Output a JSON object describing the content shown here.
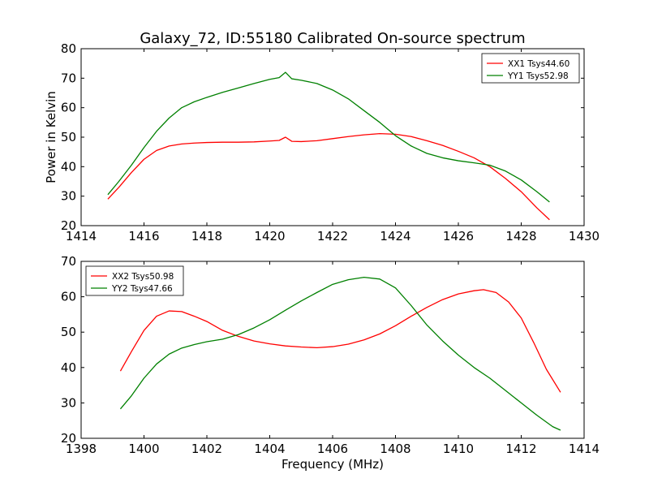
{
  "title": "Galaxy_72, ID:55180 Calibrated On-source spectrum",
  "colors": {
    "xx": "#ff0000",
    "yy": "#008000"
  },
  "chart_data": [
    {
      "type": "line",
      "ylabel": "Power in Kelvin",
      "xlabel": "",
      "xlim": [
        1414,
        1430
      ],
      "ylim": [
        20,
        80
      ],
      "xticks": [
        1414,
        1416,
        1418,
        1420,
        1422,
        1424,
        1426,
        1428,
        1430
      ],
      "yticks": [
        20,
        30,
        40,
        50,
        60,
        70,
        80
      ],
      "legend": "top-right",
      "series": [
        {
          "name": "XX1 Tsys44.60",
          "color": "#ff0000",
          "x": [
            1414.85,
            1415.2,
            1415.6,
            1416.0,
            1416.4,
            1416.8,
            1417.2,
            1417.6,
            1418.0,
            1418.5,
            1419.0,
            1419.5,
            1420.0,
            1420.3,
            1420.5,
            1420.7,
            1421.0,
            1421.5,
            1422.0,
            1422.5,
            1423.0,
            1423.5,
            1424.0,
            1424.5,
            1425.0,
            1425.5,
            1426.0,
            1426.5,
            1427.0,
            1427.5,
            1428.0,
            1428.5,
            1428.9
          ],
          "y": [
            29.0,
            33.0,
            38.0,
            42.5,
            45.5,
            47.0,
            47.7,
            48.0,
            48.2,
            48.3,
            48.3,
            48.4,
            48.7,
            48.9,
            50.0,
            48.6,
            48.5,
            48.8,
            49.5,
            50.2,
            50.8,
            51.2,
            51.0,
            50.2,
            48.8,
            47.2,
            45.2,
            43.0,
            40.0,
            36.0,
            31.5,
            26.0,
            22.0
          ]
        },
        {
          "name": "YY1 Tsys52.98",
          "color": "#008000",
          "x": [
            1414.85,
            1415.2,
            1415.6,
            1416.0,
            1416.4,
            1416.8,
            1417.2,
            1417.6,
            1418.0,
            1418.5,
            1419.0,
            1419.5,
            1420.0,
            1420.3,
            1420.5,
            1420.7,
            1421.0,
            1421.5,
            1422.0,
            1422.5,
            1423.0,
            1423.5,
            1424.0,
            1424.5,
            1425.0,
            1425.5,
            1426.0,
            1426.5,
            1427.0,
            1427.5,
            1428.0,
            1428.5,
            1428.9
          ],
          "y": [
            30.5,
            35.0,
            40.5,
            46.5,
            52.0,
            56.5,
            60.0,
            62.0,
            63.5,
            65.2,
            66.7,
            68.2,
            69.6,
            70.2,
            72.0,
            69.8,
            69.3,
            68.2,
            66.0,
            63.0,
            59.0,
            55.0,
            50.5,
            47.0,
            44.5,
            43.0,
            42.0,
            41.3,
            40.5,
            38.5,
            35.5,
            31.5,
            28.0
          ]
        }
      ]
    },
    {
      "type": "line",
      "ylabel": "",
      "xlabel": "Frequency (MHz)",
      "xlim": [
        1398,
        1414
      ],
      "ylim": [
        20,
        70
      ],
      "xticks": [
        1398,
        1400,
        1402,
        1404,
        1406,
        1408,
        1410,
        1412,
        1414
      ],
      "yticks": [
        20,
        30,
        40,
        50,
        60,
        70
      ],
      "legend": "top-left",
      "series": [
        {
          "name": "XX2 Tsys50.98",
          "color": "#ff0000",
          "x": [
            1399.25,
            1399.6,
            1400.0,
            1400.4,
            1400.8,
            1401.2,
            1401.6,
            1402.0,
            1402.5,
            1403.0,
            1403.5,
            1404.0,
            1404.5,
            1405.0,
            1405.5,
            1406.0,
            1406.5,
            1407.0,
            1407.5,
            1408.0,
            1408.5,
            1409.0,
            1409.5,
            1410.0,
            1410.5,
            1410.8,
            1411.2,
            1411.6,
            1412.0,
            1412.4,
            1412.8,
            1413.25
          ],
          "y": [
            39.0,
            44.5,
            50.5,
            54.5,
            56.0,
            55.8,
            54.5,
            53.0,
            50.5,
            48.8,
            47.5,
            46.7,
            46.1,
            45.8,
            45.6,
            45.9,
            46.6,
            47.8,
            49.5,
            51.8,
            54.5,
            57.0,
            59.2,
            60.8,
            61.7,
            62.0,
            61.2,
            58.5,
            54.0,
            47.0,
            39.5,
            33.0
          ]
        },
        {
          "name": "YY2 Tsys47.66",
          "color": "#008000",
          "x": [
            1399.25,
            1399.6,
            1400.0,
            1400.4,
            1400.8,
            1401.2,
            1401.6,
            1402.0,
            1402.5,
            1403.0,
            1403.5,
            1404.0,
            1404.5,
            1405.0,
            1405.5,
            1406.0,
            1406.5,
            1407.0,
            1407.5,
            1408.0,
            1408.5,
            1409.0,
            1409.5,
            1410.0,
            1410.5,
            1411.0,
            1411.5,
            1412.0,
            1412.5,
            1413.0,
            1413.25
          ],
          "y": [
            28.3,
            32.0,
            37.0,
            41.0,
            43.8,
            45.5,
            46.5,
            47.3,
            48.0,
            49.3,
            51.2,
            53.5,
            56.2,
            58.8,
            61.2,
            63.5,
            64.8,
            65.5,
            65.0,
            62.5,
            57.5,
            52.0,
            47.5,
            43.5,
            40.0,
            37.0,
            33.5,
            30.0,
            26.5,
            23.3,
            22.3
          ]
        }
      ]
    }
  ]
}
